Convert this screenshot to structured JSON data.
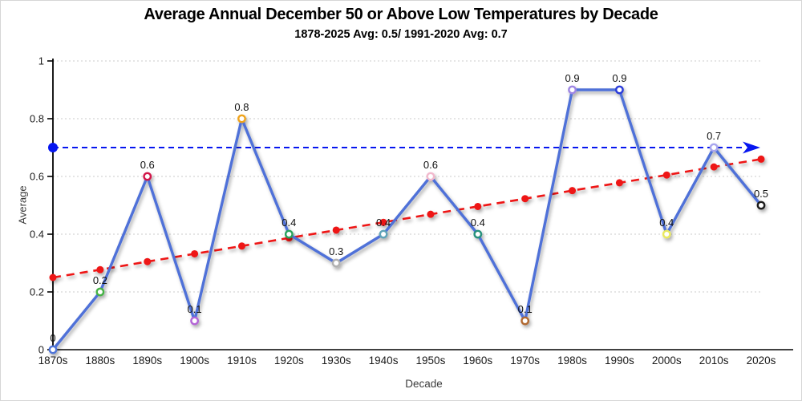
{
  "title": "Average Annual December 50 or Above Low Temperatures by Decade",
  "subtitle": "1878-2025 Avg: 0.5/ 1991-2020 Avg: 0.7",
  "chart_data": {
    "type": "line",
    "categories": [
      "1870s",
      "1880s",
      "1890s",
      "1900s",
      "1910s",
      "1920s",
      "1930s",
      "1940s",
      "1950s",
      "1960s",
      "1970s",
      "1980s",
      "1990s",
      "2000s",
      "2010s",
      "2020s"
    ],
    "series": [
      {
        "name": "decade-average",
        "color": "#4f71d8",
        "values": [
          0,
          0.2,
          0.6,
          0.1,
          0.8,
          0.4,
          0.3,
          0.4,
          0.6,
          0.4,
          0.1,
          0.9,
          0.9,
          0.4,
          0.7,
          0.5
        ],
        "point_labels": [
          "0",
          "0.2",
          "0.6",
          "0.1",
          "0.8",
          "0.4",
          "0.3",
          "0.4",
          "0.6",
          "0.4",
          "0.1",
          "0.9",
          "0.9",
          "0.4",
          "0.7",
          "0.5"
        ],
        "marker_colors": [
          "#4f74d8",
          "#44b244",
          "#d2174a",
          "#b365d6",
          "#f0a41f",
          "#2ba35c",
          "#b0b0b0",
          "#5fa3b8",
          "#f2b9cd",
          "#27917c",
          "#b26a31",
          "#9e86e3",
          "#2c3bd9",
          "#e9e961",
          "#a8a5ee",
          "#1c1c1c"
        ]
      },
      {
        "name": "linear-trend",
        "color": "#ee1414",
        "style": "dashed",
        "values": [
          0.25,
          0.277,
          0.305,
          0.332,
          0.359,
          0.387,
          0.414,
          0.441,
          0.469,
          0.496,
          0.523,
          0.551,
          0.578,
          0.605,
          0.633,
          0.66
        ]
      }
    ],
    "reference_line": {
      "name": "1991-2020 average",
      "value": 0.7,
      "color": "#0616f0",
      "style": "dashed",
      "arrow": true
    },
    "xlabel": "Decade",
    "ylabel": "Average",
    "ylim": [
      0,
      1
    ],
    "yticks": [
      0,
      0.2,
      0.4,
      0.6,
      0.8,
      1
    ],
    "ytick_labels": [
      "0",
      "0.2",
      "0.4",
      "0.6",
      "0.8",
      "1"
    ],
    "grid": "horizontal-dotted",
    "grid_color": "#cbcbcb",
    "axis_color": "#000000",
    "label_color": "#1a1a1a"
  }
}
